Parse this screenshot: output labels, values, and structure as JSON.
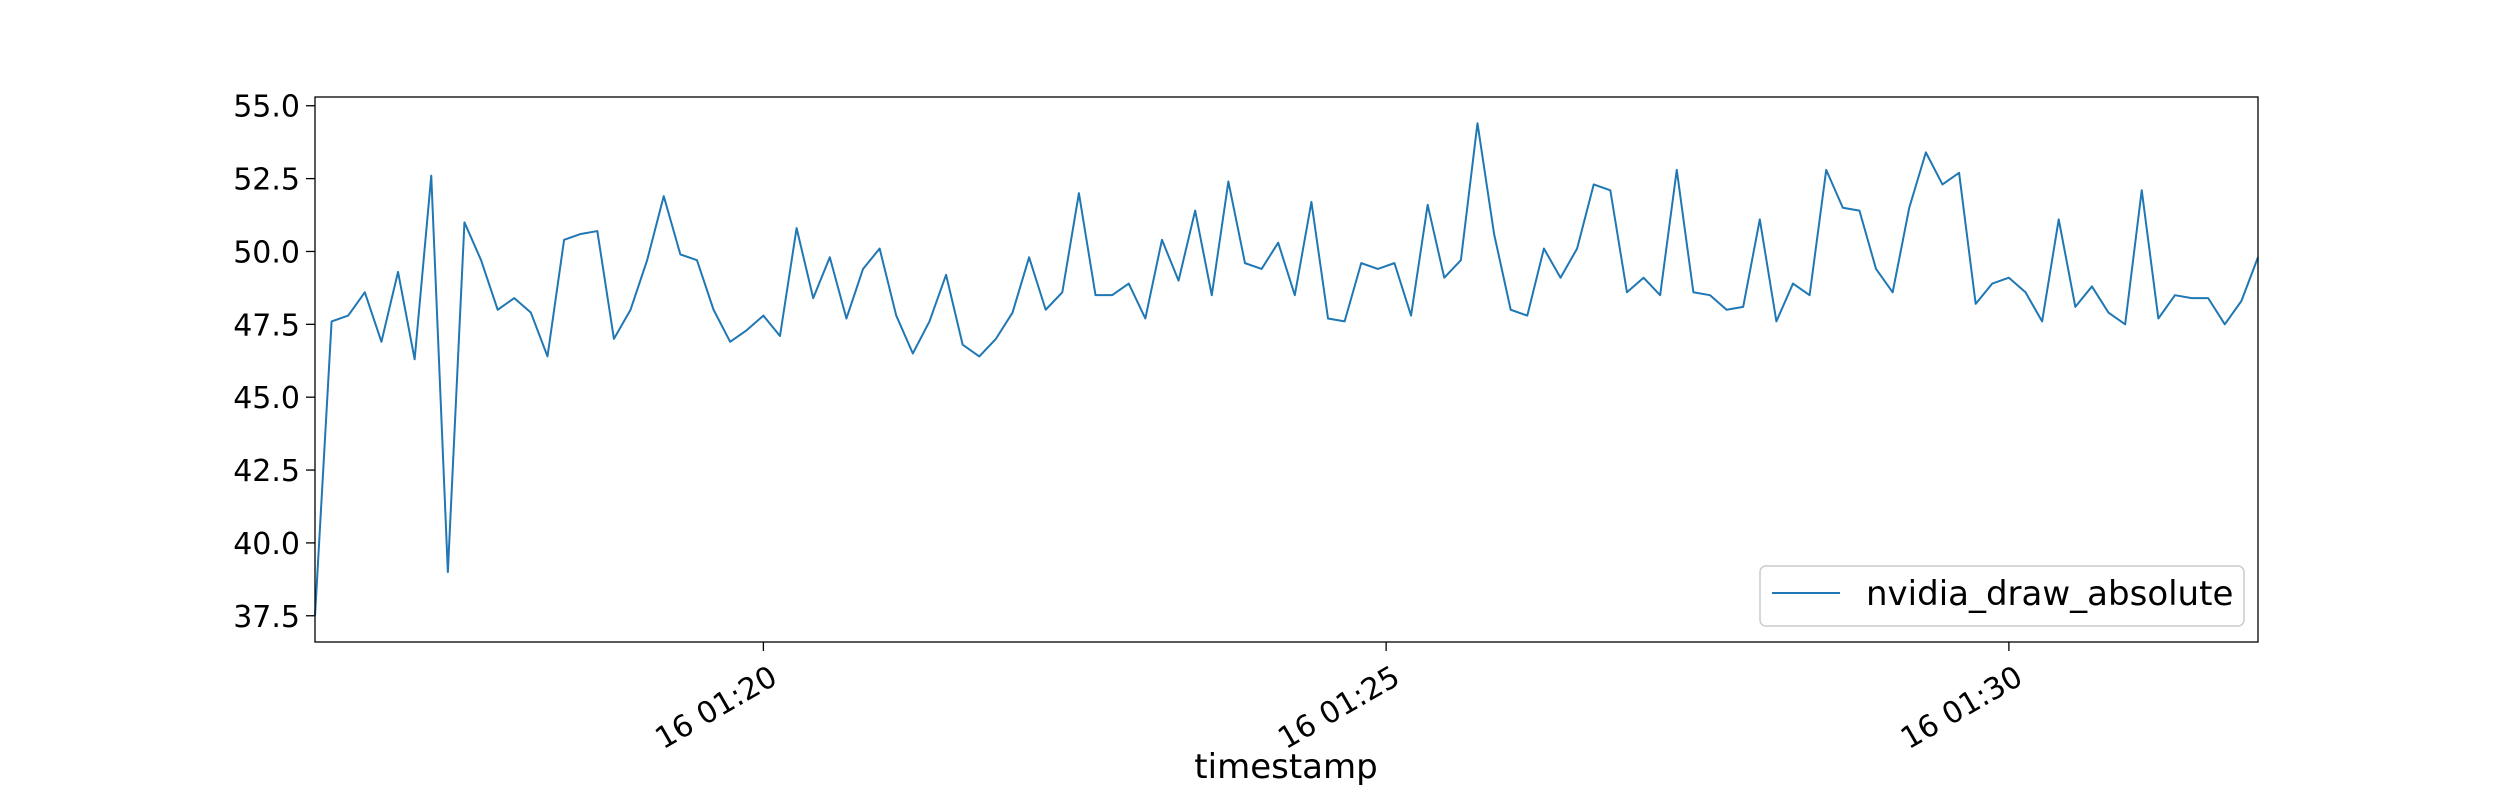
{
  "chart_data": {
    "type": "line",
    "xlabel": "timestamp",
    "ylabel": "",
    "title": "",
    "ylim": [
      36.6,
      55.3
    ],
    "xlim": [
      "2000-01-16T01:16:24",
      "2000-01-16T01:32:00"
    ],
    "yticks": [
      37.5,
      40.0,
      42.5,
      45.0,
      47.5,
      50.0,
      52.5,
      55.0
    ],
    "ytick_labels": [
      "37.5",
      "40.0",
      "42.5",
      "45.0",
      "47.5",
      "50.0",
      "52.5",
      "55.0"
    ],
    "xticks": [
      "2000-01-16T01:20:00",
      "2000-01-16T01:25:00",
      "2000-01-16T01:30:00"
    ],
    "xtick_labels": [
      "16 01:20",
      "16 01:25",
      "16 01:30"
    ],
    "grid": false,
    "legend": {
      "position": "lower right"
    },
    "colors": {
      "series": "#1f77b4",
      "axes": "#000000",
      "legend_border": "#cccccc"
    },
    "series": [
      {
        "name": "nvidia_draw_absolute",
        "x_start": "2000-01-16T01:16:24",
        "x_step_seconds": 8,
        "values": [
          37.5,
          47.6,
          47.8,
          48.6,
          46.9,
          49.3,
          46.3,
          52.6,
          39.0,
          51.0,
          49.7,
          48.0,
          48.4,
          47.9,
          46.4,
          50.4,
          50.6,
          50.7,
          47.0,
          48.0,
          49.7,
          51.9,
          49.9,
          49.7,
          48.0,
          46.9,
          47.3,
          47.8,
          47.1,
          50.8,
          48.4,
          49.8,
          47.7,
          49.4,
          50.1,
          47.8,
          46.5,
          47.6,
          49.2,
          46.8,
          46.4,
          47.0,
          47.9,
          49.8,
          48.0,
          48.6,
          52.0,
          48.5,
          48.5,
          48.9,
          47.7,
          50.4,
          49.0,
          51.4,
          48.5,
          52.4,
          49.6,
          49.4,
          50.3,
          48.5,
          51.7,
          47.7,
          47.6,
          49.6,
          49.4,
          49.6,
          47.8,
          51.6,
          49.1,
          49.7,
          54.4,
          50.6,
          48.0,
          47.8,
          50.1,
          49.1,
          50.1,
          52.3,
          52.1,
          48.6,
          49.1,
          48.5,
          52.8,
          48.6,
          48.5,
          48.0,
          48.1,
          51.1,
          47.6,
          48.9,
          48.5,
          52.8,
          51.5,
          51.4,
          49.4,
          48.6,
          51.5,
          53.4,
          52.3,
          52.7,
          48.2,
          48.9,
          49.1,
          48.6,
          47.6,
          51.1,
          48.1,
          48.8,
          47.9,
          47.5,
          52.1,
          47.7,
          48.5,
          48.4,
          48.4,
          47.5,
          48.3,
          49.8
        ]
      }
    ]
  }
}
